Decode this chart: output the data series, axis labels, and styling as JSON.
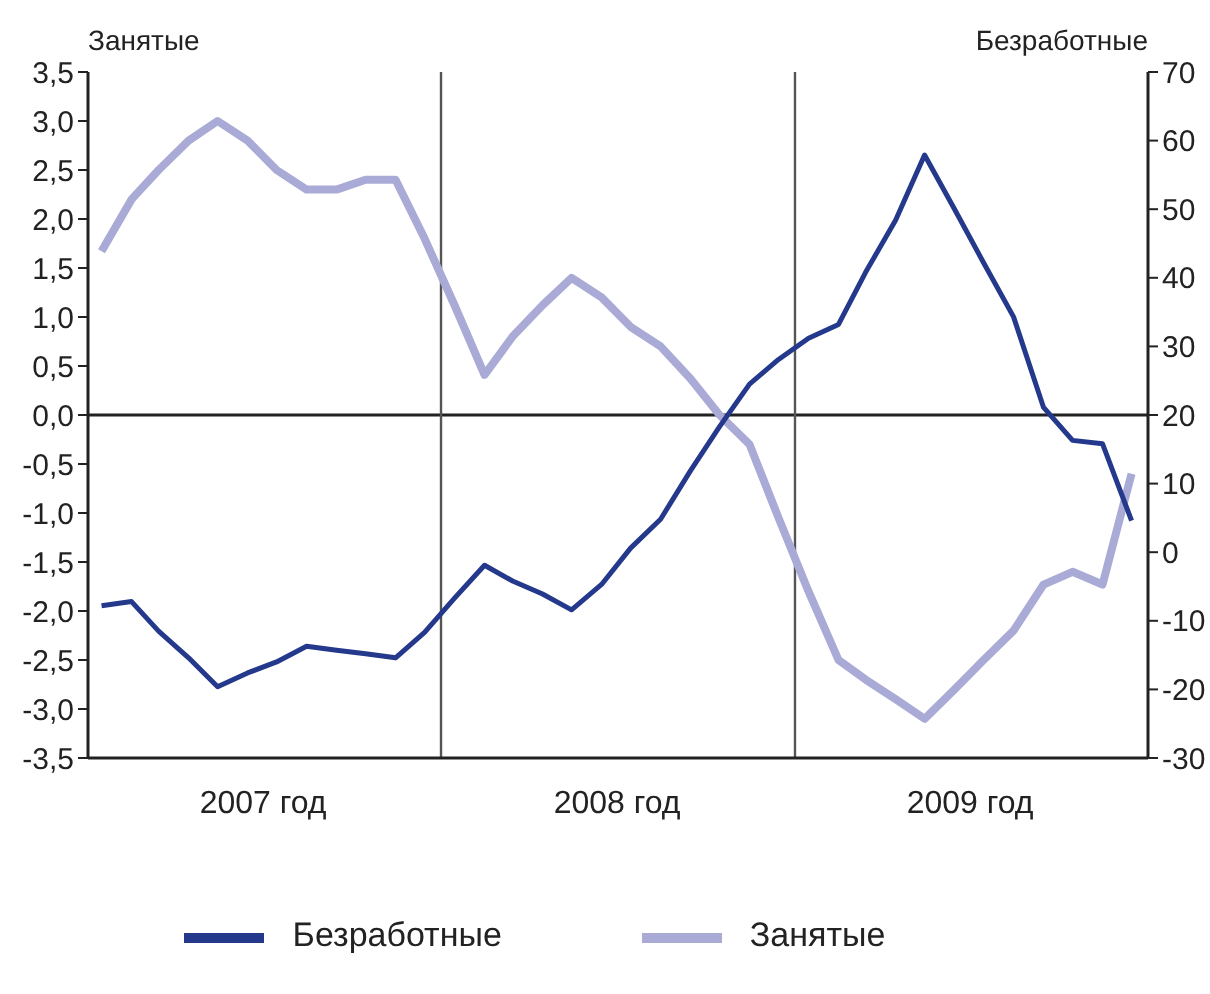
{
  "chart_data": {
    "type": "line",
    "ylabel": "Занятые",
    "y2label": "Безработные",
    "x": [
      "2007-01-15",
      "2007-02-15",
      "2007-03-15",
      "2007-04-15",
      "2007-05-15",
      "2007-06-15",
      "2007-07-15",
      "2007-08-15",
      "2007-09-15",
      "2007-10-15",
      "2007-11-15",
      "2007-12-15",
      "2008-01-15",
      "2008-02-15",
      "2008-03-15",
      "2008-04-15",
      "2008-05-15",
      "2008-06-15",
      "2008-07-15",
      "2008-08-15",
      "2008-09-15",
      "2008-10-15",
      "2008-11-15",
      "2008-12-15",
      "2009-01-15",
      "2009-02-15",
      "2009-03-15",
      "2009-04-15",
      "2009-05-15",
      "2009-06-15",
      "2009-07-15",
      "2009-08-15",
      "2009-09-15",
      "2009-10-15",
      "2009-11-15",
      "2009-12-15"
    ],
    "series": [
      {
        "name": "Занятые",
        "color": "#aaaad6",
        "values": [
          1.67,
          2.2,
          2.5,
          2.8,
          3.0,
          2.8,
          2.5,
          2.3,
          2.3,
          2.4,
          2.4,
          1.8,
          1.12,
          0.41,
          0.8,
          1.12,
          1.4,
          1.2,
          0.9,
          0.7,
          0.37,
          0.0,
          -0.3,
          -1.05,
          -1.8,
          -2.5,
          -2.7,
          -2.9,
          -3.1,
          -2.8,
          -2.5,
          -2.2,
          -1.73,
          -1.6,
          -1.73,
          -0.6
        ]
      },
      {
        "name": "Безработные",
        "color": "#24388c",
        "axis": "y2",
        "values": [
          -7.8,
          -7.2,
          -11.5,
          -15.4,
          -19.6,
          -17.6,
          -16,
          -13.7,
          -14.3,
          -14.8,
          -15.4,
          -11.7,
          -6.7,
          -1.9,
          -4.2,
          -6.1,
          -8.4,
          -4.7,
          0.6,
          4.8,
          11.9,
          18.3,
          24.5,
          28.1,
          31.2,
          33.2,
          40.8,
          48.4,
          57.9,
          50,
          42.2,
          34.3,
          21.1,
          16.3,
          15.8,
          4.6
        ]
      }
    ],
    "xlim": [
      "2007-01-01",
      "2010-01-01"
    ],
    "xticks": [
      {
        "value": "2007-07-01",
        "label": "2007 год"
      },
      {
        "value": "2008-07-01",
        "label": "2008 год"
      },
      {
        "value": "2009-07-01",
        "label": "2009 год"
      }
    ],
    "ylim": [
      -3.5,
      3.5
    ],
    "yticks": [
      {
        "value": -3.5,
        "label": "-3,5"
      },
      {
        "value": -3,
        "label": "-3,0"
      },
      {
        "value": -2.5,
        "label": "-2,5"
      },
      {
        "value": -2,
        "label": "-2,0"
      },
      {
        "value": -1.5,
        "label": "-1,5"
      },
      {
        "value": -1,
        "label": "-1,0"
      },
      {
        "value": -0.5,
        "label": "-0,5"
      },
      {
        "value": 0,
        "label": "0,0"
      },
      {
        "value": 0.5,
        "label": "0,5"
      },
      {
        "value": 1,
        "label": "1,0"
      },
      {
        "value": 1.5,
        "label": "1,5"
      },
      {
        "value": 2,
        "label": "2,0"
      },
      {
        "value": 2.5,
        "label": "2,5"
      },
      {
        "value": 3,
        "label": "3,0"
      },
      {
        "value": 3.5,
        "label": "3,5"
      }
    ],
    "y2lim": [
      -30,
      70
    ],
    "y2ticks": [
      -30,
      -20,
      -10,
      0,
      10,
      20,
      30,
      40,
      50,
      60,
      70
    ],
    "ref_lines": [
      {
        "axis": "y",
        "value": 0,
        "color": "#222222"
      },
      {
        "axis": "x",
        "value": "2008-01-01",
        "color": "#555555"
      },
      {
        "axis": "x",
        "value": "2009-01-01",
        "color": "#555555"
      }
    ],
    "legend": "bottom",
    "grid": false,
    "marker": "none",
    "line_style": "solid"
  }
}
